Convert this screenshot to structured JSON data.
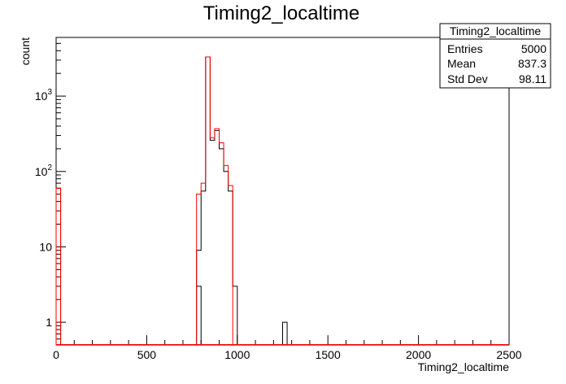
{
  "chart_data": {
    "type": "histogram",
    "title": "Timing2_localtime",
    "xlabel": "Timing2_localtime",
    "ylabel": "count",
    "xlim": [
      0,
      2500
    ],
    "ylim": [
      0.5,
      6000
    ],
    "yscale": "log",
    "xticks": [
      {
        "value": 0,
        "label": "0"
      },
      {
        "value": 500,
        "label": "500"
      },
      {
        "value": 1000,
        "label": "1000"
      },
      {
        "value": 1500,
        "label": "1500"
      },
      {
        "value": 2000,
        "label": "2000"
      },
      {
        "value": 2500,
        "label": "2500"
      }
    ],
    "yticks": [
      {
        "value": 1,
        "label": "1"
      },
      {
        "value": 10,
        "label": "10"
      },
      {
        "value": 100,
        "label": "10",
        "exp": "2"
      },
      {
        "value": 1000,
        "label": "10",
        "exp": "3"
      }
    ],
    "bin_width": 25,
    "series": [
      {
        "color": "#000000",
        "bins": [
          {
            "x": 0,
            "y": 60
          },
          {
            "x": 750,
            "y": 0.5
          },
          {
            "x": 775,
            "y": 3
          },
          {
            "x": 775,
            "y": 9
          },
          {
            "x": 800,
            "y": 55
          },
          {
            "x": 825,
            "y": 3300
          },
          {
            "x": 850,
            "y": 260
          },
          {
            "x": 875,
            "y": 350
          },
          {
            "x": 900,
            "y": 200
          },
          {
            "x": 925,
            "y": 100
          },
          {
            "x": 950,
            "y": 55
          },
          {
            "x": 975,
            "y": 3
          },
          {
            "x": 1250,
            "y": 1
          }
        ]
      },
      {
        "color": "#ff0000",
        "bins": [
          {
            "x": 0,
            "y": 60
          },
          {
            "x": 775,
            "y": 50
          },
          {
            "x": 800,
            "y": 70
          },
          {
            "x": 825,
            "y": 3300
          },
          {
            "x": 850,
            "y": 280
          },
          {
            "x": 875,
            "y": 370
          },
          {
            "x": 900,
            "y": 240
          },
          {
            "x": 925,
            "y": 120
          },
          {
            "x": 950,
            "y": 65
          }
        ]
      }
    ],
    "stats": {
      "title": "Timing2_localtime",
      "rows": [
        {
          "label": "Entries",
          "value": "5000"
        },
        {
          "label": "Mean",
          "value": "837.3"
        },
        {
          "label": "Std Dev",
          "value": "98.11"
        }
      ]
    }
  }
}
